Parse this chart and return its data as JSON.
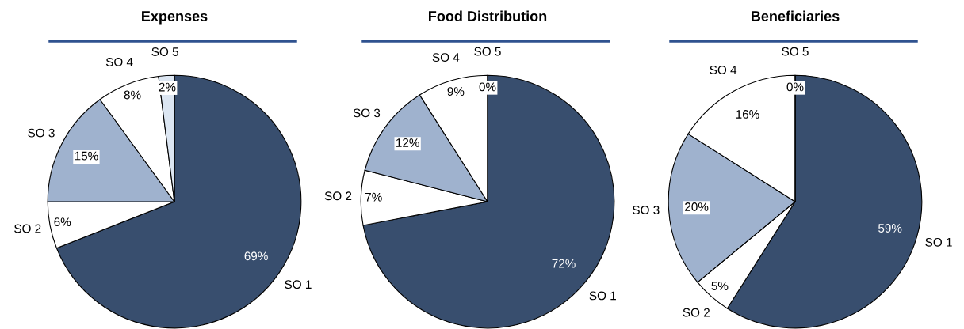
{
  "chart_data": [
    {
      "type": "pie",
      "title": "Expenses",
      "categories": [
        "SO 1",
        "SO 2",
        "SO 3",
        "SO 4",
        "SO 5"
      ],
      "values": [
        69,
        6,
        15,
        8,
        2
      ],
      "value_labels": [
        "69%",
        "6%",
        "15%",
        "8%",
        "2%"
      ],
      "colors": [
        "#384e6e",
        "#ffffff",
        "#9fb2ce",
        "#ffffff",
        "#dce6f2"
      ]
    },
    {
      "type": "pie",
      "title": "Food Distribution",
      "categories": [
        "SO 1",
        "SO 2",
        "SO 3",
        "SO 4",
        "SO 5"
      ],
      "values": [
        72,
        7,
        12,
        9,
        0
      ],
      "value_labels": [
        "72%",
        "7%",
        "12%",
        "9%",
        "0%"
      ],
      "colors": [
        "#384e6e",
        "#ffffff",
        "#9fb2ce",
        "#ffffff",
        "#dce6f2"
      ]
    },
    {
      "type": "pie",
      "title": "Beneficiaries",
      "categories": [
        "SO 1",
        "SO 2",
        "SO 3",
        "SO 4",
        "SO 5"
      ],
      "values": [
        59,
        5,
        20,
        16,
        0
      ],
      "value_labels": [
        "59%",
        "5%",
        "20%",
        "16%",
        "0%"
      ],
      "colors": [
        "#384e6e",
        "#ffffff",
        "#9fb2ce",
        "#ffffff",
        "#dce6f2"
      ]
    }
  ]
}
